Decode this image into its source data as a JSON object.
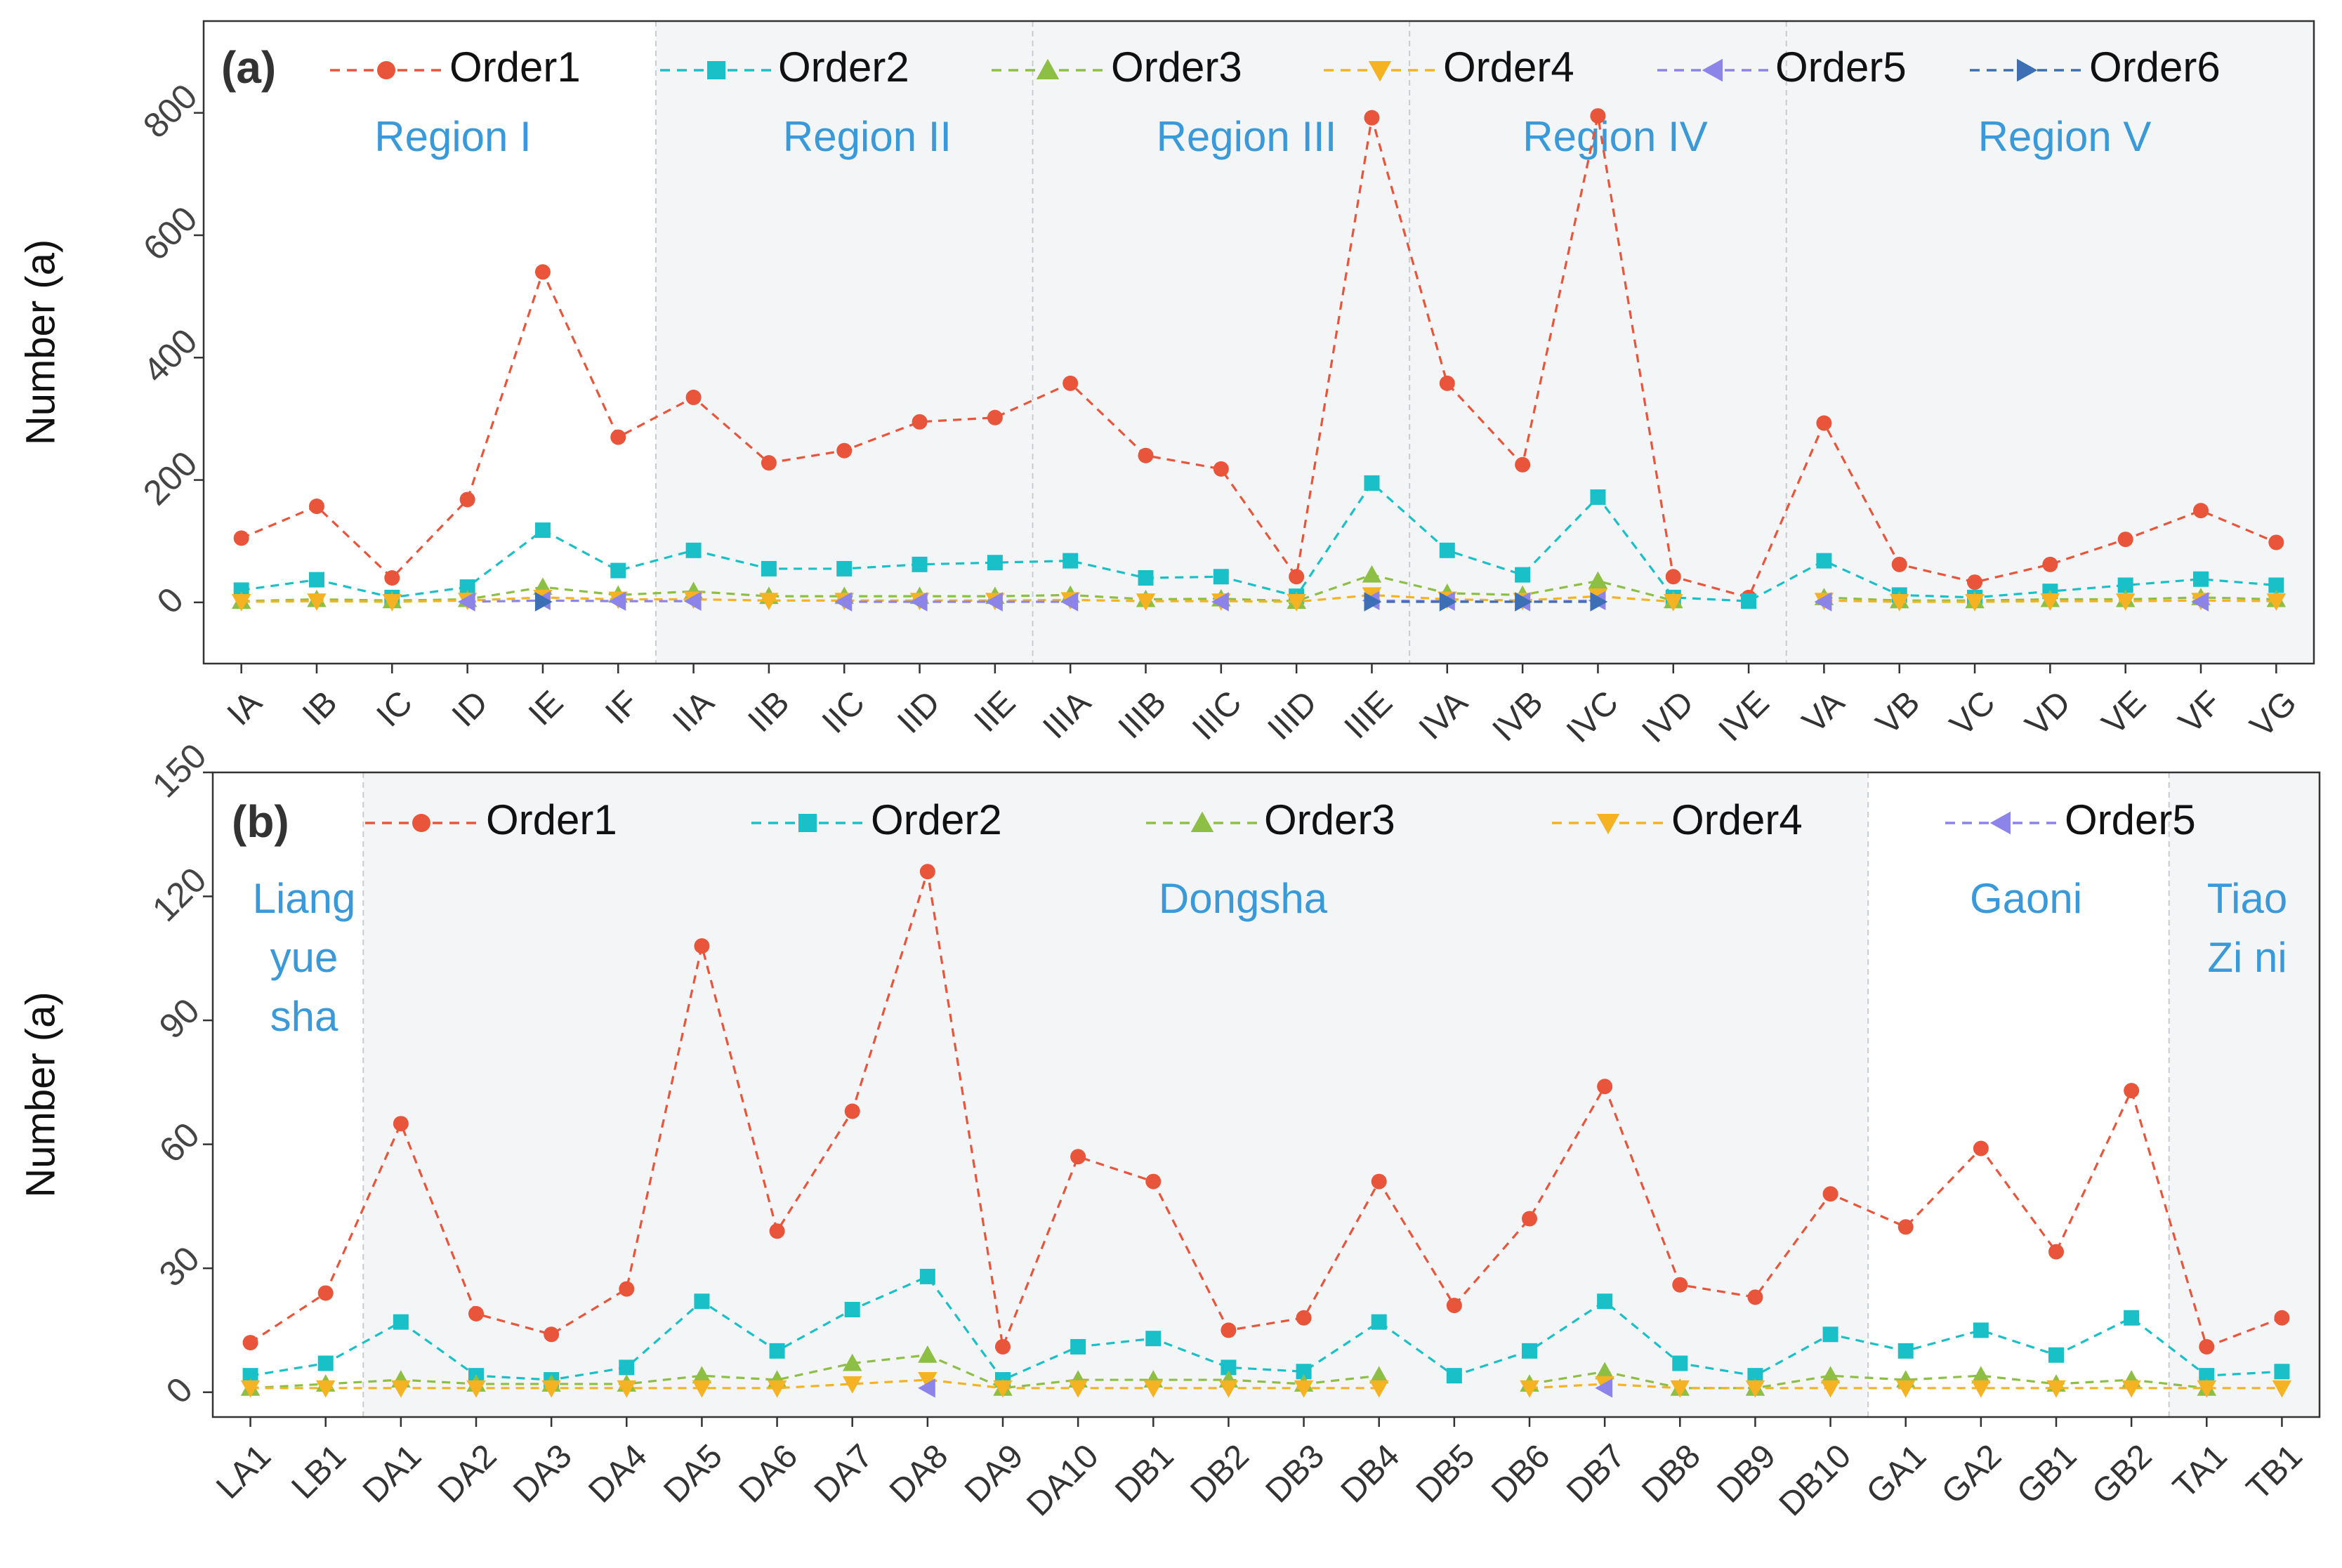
{
  "chart_data": [
    {
      "type": "line",
      "panel_label": "(a)",
      "ylabel": "Number (a)",
      "xlabel": "",
      "ylim": [
        -100,
        950
      ],
      "yticks": [
        0,
        200,
        400,
        600,
        800
      ],
      "grid": false,
      "legend_position": "top",
      "categories": [
        "IA",
        "IB",
        "IC",
        "ID",
        "IE",
        "IF",
        "IIA",
        "IIB",
        "IIC",
        "IID",
        "IIE",
        "IIIA",
        "IIIB",
        "IIIC",
        "IIID",
        "IIIE",
        "IVA",
        "IVB",
        "IVC",
        "IVD",
        "IVE",
        "VA",
        "VB",
        "VC",
        "VD",
        "VE",
        "VF",
        "VG"
      ],
      "regions": [
        {
          "label": "Region I",
          "start": 0,
          "end": 5,
          "shaded": false
        },
        {
          "label": "Region II",
          "start": 6,
          "end": 10,
          "shaded": true
        },
        {
          "label": "Region III",
          "start": 11,
          "end": 15,
          "shaded": true
        },
        {
          "label": "Region IV",
          "start": 16,
          "end": 20,
          "shaded": true
        },
        {
          "label": "Region V",
          "start": 21,
          "end": 27,
          "shaded": true
        }
      ],
      "series": [
        {
          "name": "Order1",
          "color": "#e8553b",
          "marker": "circle",
          "values": [
            105,
            157,
            40,
            168,
            540,
            270,
            335,
            228,
            248,
            295,
            302,
            358,
            240,
            218,
            42,
            792,
            358,
            225,
            795,
            42,
            8,
            293,
            62,
            33,
            62,
            103,
            150,
            98
          ]
        },
        {
          "name": "Order2",
          "color": "#19c0c8",
          "marker": "square",
          "values": [
            20,
            37,
            8,
            25,
            118,
            52,
            85,
            55,
            55,
            62,
            65,
            68,
            40,
            42,
            10,
            195,
            85,
            45,
            172,
            8,
            2,
            68,
            12,
            8,
            18,
            28,
            38,
            28
          ]
        },
        {
          "name": "Order3",
          "color": "#8dbf45",
          "marker": "triangle-up",
          "values": [
            2,
            5,
            3,
            5,
            25,
            12,
            18,
            10,
            10,
            10,
            10,
            12,
            5,
            6,
            2,
            45,
            15,
            12,
            35,
            3,
            null,
            8,
            3,
            3,
            5,
            5,
            8,
            5
          ]
        },
        {
          "name": "Order4",
          "color": "#f5b323",
          "marker": "triangle-down",
          "values": [
            1,
            2,
            1,
            3,
            8,
            5,
            5,
            3,
            3,
            3,
            3,
            4,
            2,
            2,
            1,
            12,
            5,
            3,
            10,
            1,
            null,
            3,
            1,
            1,
            2,
            2,
            3,
            2
          ]
        },
        {
          "name": "Order5",
          "color": "#8c84e8",
          "marker": "triangle-left",
          "values": [
            null,
            null,
            null,
            1,
            3,
            2,
            2,
            null,
            1,
            1,
            1,
            1,
            null,
            1,
            null,
            3,
            2,
            1,
            3,
            null,
            null,
            1,
            null,
            null,
            null,
            null,
            1,
            null
          ]
        },
        {
          "name": "Order6",
          "color": "#3d6fb6",
          "marker": "triangle-right",
          "values": [
            null,
            null,
            null,
            null,
            1,
            null,
            null,
            null,
            null,
            null,
            null,
            null,
            null,
            null,
            null,
            1,
            1,
            1,
            1,
            null,
            null,
            null,
            null,
            null,
            null,
            null,
            null,
            null
          ]
        }
      ]
    },
    {
      "type": "line",
      "panel_label": "(b)",
      "ylabel": "Number (a)",
      "xlabel": "",
      "ylim": [
        -6,
        150
      ],
      "yticks": [
        0,
        30,
        60,
        90,
        120,
        150
      ],
      "grid": false,
      "legend_position": "top",
      "categories": [
        "LA1",
        "LB1",
        "DA1",
        "DA2",
        "DA3",
        "DA4",
        "DA5",
        "DA6",
        "DA7",
        "DA8",
        "DA9",
        "DA10",
        "DB1",
        "DB2",
        "DB3",
        "DB4",
        "DB5",
        "DB6",
        "DB7",
        "DB8",
        "DB9",
        "DB10",
        "GA1",
        "GA2",
        "GB1",
        "GB2",
        "TA1",
        "TB1"
      ],
      "regions": [
        {
          "label": "Liang\nyue\nsha",
          "start": 0,
          "end": 1,
          "shaded": false
        },
        {
          "label": "Dongsha",
          "start": 2,
          "end": 21,
          "shaded": true
        },
        {
          "label": "Gaoni",
          "start": 22,
          "end": 25,
          "shaded": false
        },
        {
          "label": "Tiao\nZi ni",
          "start": 26,
          "end": 27,
          "shaded": true
        }
      ],
      "series": [
        {
          "name": "Order1",
          "color": "#e8553b",
          "marker": "circle",
          "values": [
            12,
            24,
            65,
            19,
            14,
            25,
            108,
            39,
            68,
            126,
            11,
            57,
            51,
            15,
            18,
            51,
            21,
            42,
            74,
            26,
            23,
            48,
            40,
            59,
            34,
            73,
            11,
            18
          ]
        },
        {
          "name": "Order2",
          "color": "#19c0c8",
          "marker": "square",
          "values": [
            4,
            7,
            17,
            4,
            3,
            6,
            22,
            10,
            20,
            28,
            3,
            11,
            13,
            6,
            5,
            17,
            4,
            10,
            22,
            7,
            4,
            14,
            10,
            15,
            9,
            18,
            4,
            5
          ]
        },
        {
          "name": "Order3",
          "color": "#8dbf45",
          "marker": "triangle-up",
          "values": [
            1,
            2,
            3,
            2,
            2,
            2,
            4,
            3,
            7,
            9,
            1,
            3,
            3,
            3,
            2,
            4,
            null,
            2,
            5,
            1,
            1,
            4,
            3,
            4,
            2,
            3,
            1,
            null
          ]
        },
        {
          "name": "Order4",
          "color": "#f5b323",
          "marker": "triangle-down",
          "values": [
            1,
            1,
            1,
            1,
            1,
            1,
            1,
            1,
            2,
            3,
            1,
            1,
            1,
            1,
            1,
            1,
            null,
            1,
            2,
            1,
            1,
            1,
            1,
            1,
            1,
            1,
            1,
            1
          ]
        },
        {
          "name": "Order5",
          "color": "#8c84e8",
          "marker": "triangle-left",
          "values": [
            null,
            null,
            null,
            null,
            null,
            null,
            null,
            null,
            null,
            1,
            null,
            null,
            null,
            null,
            null,
            null,
            null,
            null,
            1,
            null,
            null,
            null,
            null,
            null,
            null,
            null,
            null,
            null
          ]
        }
      ]
    }
  ]
}
